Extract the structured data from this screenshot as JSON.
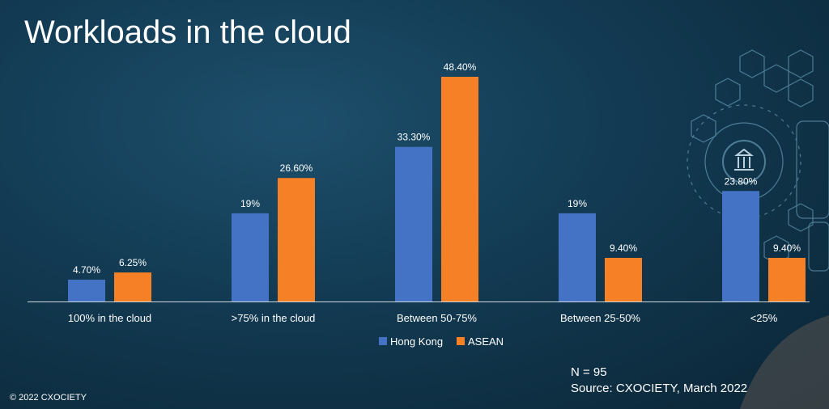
{
  "title": "Workloads in the cloud",
  "sample_note": "N = 95",
  "source_note": "Source: CXOCIETY, March 2022",
  "copyright": "© 2022 CXOCIETY",
  "colors": {
    "hong_kong": "#4472c4",
    "asean": "#f58025",
    "axis": "#cfd8de"
  },
  "chart_data": {
    "type": "bar",
    "categories": [
      "100% in the cloud",
      ">75% in the cloud",
      "Between 50-75%",
      "Between 25-50%",
      "<25%"
    ],
    "series": [
      {
        "name": "Hong Kong",
        "values": [
          4.7,
          19,
          33.3,
          19,
          23.8
        ],
        "labels": [
          "4.70%",
          "19%",
          "33.30%",
          "19%",
          "23.80%"
        ]
      },
      {
        "name": "ASEAN",
        "values": [
          6.25,
          26.6,
          48.4,
          9.4,
          9.4
        ],
        "labels": [
          "6.25%",
          "26.60%",
          "48.40%",
          "9.40%",
          "9.40%"
        ]
      }
    ],
    "ylim": [
      0,
      48.4
    ],
    "grid": false,
    "legend": "bottom"
  }
}
